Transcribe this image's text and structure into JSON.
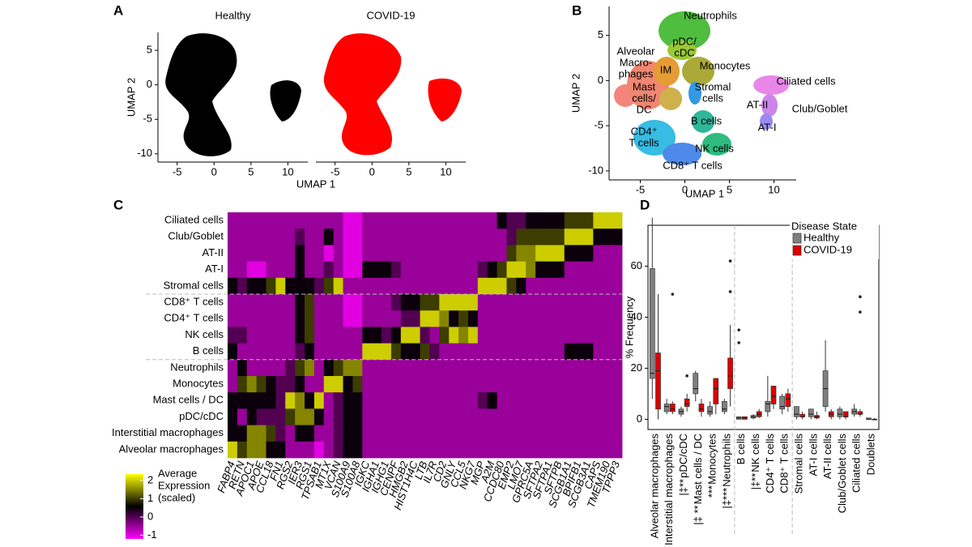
{
  "chart_data": [
    {
      "type": "umap",
      "panel_label": "A",
      "panels": [
        "Healthy",
        "COVID-19"
      ],
      "colors": [
        "#000000",
        "#ff0000"
      ],
      "xlabel": "UMAP 1",
      "ylabel": "UMAP 2",
      "xlim": [
        -7.6,
        12.7
      ],
      "ylim": [
        -11.2,
        7.6
      ],
      "xticks": [
        -5,
        0,
        5,
        10
      ],
      "yticks": [
        5,
        0,
        -5,
        -10
      ]
    },
    {
      "type": "umap",
      "panel_label": "B",
      "xlabel": "UMAP 1",
      "ylabel": "UMAP 2",
      "xlim": [
        -8.5,
        12.5
      ],
      "ylim": [
        -11,
        8.2
      ],
      "xticks": [
        -5,
        0,
        5,
        10
      ],
      "yticks": [
        5,
        0,
        -5,
        -10
      ],
      "cluster_labels": [
        [
          "Neutrophils"
        ],
        [
          "pDC/",
          "cDC"
        ],
        [
          "Alveolar",
          "Macro-",
          "phages"
        ],
        [
          "IM"
        ],
        [
          "Monocytes"
        ],
        [
          "Mast",
          "cells/",
          "DC"
        ],
        [
          "Stromal",
          "cells"
        ],
        [
          "CD4⁺",
          "T cells"
        ],
        [
          "B cells"
        ],
        [
          "NK cells"
        ],
        [
          "CD8⁺ T cells"
        ],
        [
          "Ciliated cells"
        ],
        [
          "AT-II"
        ],
        [
          "Club/Goblet"
        ],
        [
          "AT-I"
        ]
      ]
    },
    {
      "type": "heatmap",
      "panel_label": "C",
      "rows": [
        "Ciliated cells",
        "Club/Goblet",
        "AT-II",
        "AT-I",
        "Stromal cells",
        "CD8⁺ T cells",
        "CD4⁺ T cells",
        "NK cells",
        "B cells",
        "Neutrophils",
        "Monocytes",
        "Mast cells / DC",
        "pDC/cDC",
        "Interstitial macrophages",
        "Alveolar macrophages"
      ],
      "columns": [
        "FABP4",
        "RETN",
        "APOC1",
        "APOE",
        "CCL18",
        "FN1",
        "RGS2",
        "IER3",
        "RGS1",
        "TPSAB1",
        "MT1X",
        "VCAN",
        "S100A9",
        "S100A8",
        "IGKC",
        "IGHA1",
        "IGHG1",
        "CENPF",
        "HMGB2",
        "HIST1H4C",
        "LTB",
        "IL7R",
        "CD2",
        "GNLY",
        "CCL5",
        "NKG7",
        "MGP",
        "A2M",
        "CCDC80",
        "EMP2",
        "LMO7",
        "GPRC5A",
        "SFTPA2",
        "SFTPA1",
        "SFTPB",
        "SCGB1A1",
        "BPIFB1",
        "SCGB3A1",
        "CAPS",
        "TMEM190",
        "TPPP3"
      ],
      "values": [
        [
          -0.5,
          -0.5,
          -0.5,
          -0.5,
          -0.5,
          -0.5,
          -0.5,
          -0.5,
          -0.5,
          -0.5,
          -0.5,
          -0.5,
          -1,
          -1,
          -0.5,
          -0.5,
          -0.5,
          -0.5,
          -0.5,
          -0.5,
          -0.5,
          -0.5,
          -0.5,
          -0.5,
          -0.5,
          -0.5,
          -0.5,
          -0.5,
          0.5,
          0,
          0,
          0.5,
          0.5,
          0.5,
          0.5,
          1,
          1,
          1,
          2,
          2,
          2
        ],
        [
          -0.5,
          -0.5,
          -0.5,
          -0.5,
          -0.5,
          -0.5,
          -0.5,
          0,
          -0.5,
          -0.5,
          0.5,
          -0.5,
          -1,
          -1,
          -0.5,
          -0.5,
          -0.5,
          -0.5,
          -0.5,
          -0.5,
          -0.5,
          -0.5,
          -0.5,
          -0.5,
          -0.5,
          -0.5,
          -0.5,
          -0.5,
          -0.5,
          0,
          1,
          1,
          1,
          1,
          1,
          2,
          2,
          2,
          0.5,
          0.5,
          0.5
        ],
        [
          -0.5,
          -0.5,
          -0.5,
          -0.5,
          -0.5,
          -0.5,
          -0.5,
          0.5,
          -0.5,
          -0.5,
          -1,
          -0.5,
          -1,
          -1,
          -0.5,
          -0.5,
          -0.5,
          -0.5,
          -0.5,
          -0.5,
          -0.5,
          -0.5,
          -0.5,
          -0.5,
          -0.5,
          -0.5,
          -0.5,
          -0.5,
          -0.5,
          1,
          1.5,
          1.5,
          2,
          2,
          2,
          0.5,
          0.5,
          0.5,
          -0.5,
          -0.5,
          -0.5
        ],
        [
          -0.5,
          -0.5,
          -1,
          -1,
          -0.5,
          -0.5,
          -0.5,
          0.5,
          -0.5,
          -0.5,
          0,
          -0.5,
          -1,
          -1,
          0.5,
          0.5,
          0.5,
          0,
          -0.5,
          -0.5,
          -0.5,
          -0.5,
          -0.5,
          -0.5,
          -0.5,
          -0.5,
          0,
          0.5,
          1,
          2,
          2,
          1.5,
          0.5,
          0.5,
          0.5,
          -0.5,
          -0.5,
          -0.5,
          -0.5,
          -0.5,
          -0.5
        ],
        [
          0.5,
          0,
          0.5,
          0.5,
          1,
          2,
          0.5,
          0.5,
          0.5,
          0,
          1,
          2,
          -0.5,
          -0.5,
          -0.5,
          -0.5,
          -0.5,
          -0.5,
          -0.5,
          -0.5,
          -0.5,
          -0.5,
          -0.5,
          -0.5,
          -0.5,
          -0.5,
          2,
          2,
          2,
          1,
          0.5,
          -0.5,
          -0.5,
          -0.5,
          -0.5,
          -0.5,
          -0.5,
          -0.5,
          -0.5,
          -0.5,
          -0.5
        ],
        [
          -0.5,
          -0.5,
          -0.5,
          -0.5,
          -0.5,
          -0.5,
          -0.5,
          0.5,
          1,
          -0.5,
          -0.5,
          -0.5,
          -1,
          -1,
          -0.5,
          -0.5,
          -0.5,
          0,
          0.5,
          0.5,
          1,
          1,
          2,
          2,
          2,
          2,
          -0.5,
          -0.5,
          -0.5,
          -0.5,
          -0.5,
          -0.5,
          -0.5,
          -0.5,
          -0.5,
          -0.5,
          -0.5,
          -0.5,
          -0.5,
          -0.5,
          -0.5
        ],
        [
          -0.5,
          -0.5,
          -0.5,
          -0.5,
          -0.5,
          -0.5,
          -0.5,
          0.5,
          1,
          -0.5,
          -0.5,
          -0.5,
          -1,
          -1,
          -0.5,
          -0.5,
          -0.5,
          -0.5,
          0,
          0,
          2,
          2,
          1.5,
          0.5,
          1,
          0.5,
          -0.5,
          -0.5,
          -0.5,
          -0.5,
          -0.5,
          -0.5,
          -0.5,
          -0.5,
          -0.5,
          -0.5,
          -0.5,
          -0.5,
          -0.5,
          -0.5,
          -0.5
        ],
        [
          0,
          0,
          -0.5,
          -0.5,
          -0.5,
          -0.5,
          -0.5,
          0.5,
          1,
          -0.5,
          -0.5,
          -0.5,
          -0.5,
          -0.5,
          0.5,
          0.5,
          0,
          0.5,
          2,
          2,
          0,
          -0.5,
          1,
          2,
          1.5,
          2,
          -0.5,
          -0.5,
          -0.5,
          -0.5,
          -0.5,
          -0.5,
          -0.5,
          -0.5,
          -0.5,
          -0.5,
          -0.5,
          -0.5,
          -0.5,
          -0.5,
          -0.5
        ],
        [
          0.5,
          -0.5,
          -0.5,
          -0.5,
          -0.5,
          -0.5,
          -0.5,
          0,
          0.5,
          -0.5,
          -0.5,
          -0.5,
          -0.5,
          -0.5,
          2,
          2,
          2,
          1,
          0.5,
          0.5,
          1,
          0,
          -0.5,
          -0.5,
          -0.5,
          -0.5,
          -0.5,
          -0.5,
          -0.5,
          -0.5,
          -0.5,
          -0.5,
          -0.5,
          -0.5,
          -0.5,
          0.5,
          0.5,
          0.5,
          -0.5,
          -0.5,
          -0.5
        ],
        [
          -0.5,
          0.5,
          -0.5,
          -0.5,
          -0.5,
          -0.5,
          0,
          1,
          1.5,
          -0.5,
          0.5,
          1,
          1.5,
          1.5,
          -0.5,
          -0.5,
          -0.5,
          -0.5,
          -0.5,
          -0.5,
          -0.5,
          -0.5,
          -0.5,
          -0.5,
          -0.5,
          -0.5,
          -0.5,
          -0.5,
          -0.5,
          -0.5,
          -0.5,
          -0.5,
          -0.5,
          -0.5,
          -0.5,
          -0.5,
          -0.5,
          -0.5,
          -0.5,
          -0.5,
          -0.5
        ],
        [
          -0.5,
          1,
          1.5,
          1,
          0.5,
          0,
          0,
          0.5,
          -0.5,
          -0.5,
          2,
          2,
          0.5,
          1,
          -0.5,
          -0.5,
          -0.5,
          -0.5,
          -0.5,
          -0.5,
          -0.5,
          -0.5,
          -0.5,
          -0.5,
          -0.5,
          -0.5,
          -0.5,
          -0.5,
          -0.5,
          -0.5,
          -0.5,
          -0.5,
          -0.5,
          -0.5,
          -0.5,
          -0.5,
          -0.5,
          -0.5,
          -0.5,
          -0.5,
          -0.5
        ],
        [
          0.5,
          0.5,
          0.5,
          0.5,
          0.5,
          0,
          2,
          1.5,
          0.5,
          2,
          -0.5,
          0,
          0.5,
          0.5,
          -0.5,
          -0.5,
          -0.5,
          -0.5,
          -0.5,
          -0.5,
          -0.5,
          -0.5,
          -0.5,
          -0.5,
          -0.5,
          -0.5,
          0,
          0.5,
          -0.5,
          -0.5,
          -0.5,
          -0.5,
          -0.5,
          -0.5,
          -0.5,
          -0.5,
          -0.5,
          -0.5,
          -0.5,
          -0.5,
          -0.5
        ],
        [
          0.5,
          -0.5,
          0.5,
          0,
          0,
          0,
          1,
          1.5,
          1.5,
          0.5,
          -0.5,
          0,
          0.5,
          0.5,
          -0.5,
          -0.5,
          -0.5,
          -0.5,
          -0.5,
          -0.5,
          -0.5,
          -0.5,
          -0.5,
          -0.5,
          -0.5,
          -0.5,
          -0.5,
          -0.5,
          -0.5,
          -0.5,
          -0.5,
          -0.5,
          -0.5,
          -0.5,
          -0.5,
          -0.5,
          -0.5,
          -0.5,
          -0.5,
          -0.5,
          -0.5
        ],
        [
          0.5,
          0.5,
          1.5,
          1.5,
          1,
          0,
          -0.5,
          0.5,
          0.5,
          -0.5,
          -0.5,
          0,
          0.5,
          0.5,
          -0.5,
          -0.5,
          -0.5,
          -0.5,
          -0.5,
          -0.5,
          -0.5,
          -0.5,
          -0.5,
          -0.5,
          -0.5,
          -0.5,
          -0.5,
          -0.5,
          -0.5,
          -0.5,
          -0.5,
          -0.5,
          -0.5,
          -0.5,
          -0.5,
          -0.5,
          -0.5,
          -0.5,
          -0.5,
          -0.5,
          -0.5
        ],
        [
          2,
          1,
          1.5,
          1.5,
          0.5,
          0.5,
          -0.5,
          -0.5,
          -0.5,
          -1,
          -0.5,
          0,
          0.5,
          0.5,
          -0.5,
          -0.5,
          -0.5,
          -0.5,
          -0.5,
          -0.5,
          -0.5,
          -0.5,
          -0.5,
          -0.5,
          -0.5,
          -0.5,
          -0.5,
          -0.5,
          -0.5,
          -0.5,
          -0.5,
          -0.5,
          -0.5,
          -0.5,
          -0.5,
          -0.5,
          -0.5,
          -0.5,
          -0.5,
          -0.5,
          -0.5
        ]
      ],
      "colorbar_title": [
        "Average",
        "Expression",
        "(scaled)"
      ],
      "colorbar_lim": [
        -1.2,
        2.35
      ],
      "colorbar_ticks": [
        2,
        1,
        0,
        -1
      ],
      "colorbar_colors": [
        "#ff00ff",
        "#000000",
        "#ffff00"
      ]
    },
    {
      "type": "box",
      "panel_label": "D",
      "ylabel": "% Frequency",
      "ylim": [
        -4,
        76
      ],
      "yticks": [
        0,
        20,
        40,
        60
      ],
      "categories": [
        "Alveolar macrophages",
        "Interstitial macrophages",
        "pDC/cDC",
        "Mast cells / DC",
        "Monocytes",
        "Neutrophils",
        "B cells",
        "NK cells",
        "CD4⁺ T cells",
        "CD8⁺ T cells",
        "Stromal cells",
        "AT-I cells",
        "AT-II cells",
        "Club/Goblet cells",
        "Ciliated cells",
        "Doublets"
      ],
      "annotations": [
        null,
        null,
        "|‡**",
        "|‡ **",
        "***",
        "|‡***",
        null,
        "|‡**",
        null,
        null,
        null,
        null,
        null,
        null,
        null,
        null
      ],
      "legend_title": "Disease State",
      "legend_position": "top-right",
      "series": [
        {
          "name": "Healthy",
          "color": "#808080",
          "low": [
            8,
            2,
            1,
            7,
            1,
            2,
            0,
            0,
            1,
            2,
            0,
            0,
            3,
            0,
            1,
            0
          ],
          "q1": [
            16,
            3,
            2,
            10,
            2,
            3,
            0,
            0.5,
            3,
            4,
            1,
            1,
            5,
            1,
            2,
            0
          ],
          "median": [
            18,
            5,
            3,
            12,
            3,
            4,
            0.5,
            1,
            6,
            5,
            2,
            2,
            12,
            2,
            3,
            0
          ],
          "q3": [
            59,
            6,
            4,
            18,
            5,
            7,
            1,
            1.5,
            7,
            9,
            5,
            4,
            19,
            4,
            4,
            0.5
          ],
          "high": [
            79,
            8,
            5,
            19,
            7,
            8,
            1,
            2,
            17,
            10,
            5,
            4,
            31,
            5,
            6,
            0.5
          ],
          "outliers": [
            [],
            [],
            [],
            [],
            [],
            [],
            [
              35,
              30
            ],
            [],
            [],
            [],
            [],
            [],
            [],
            [],
            [],
            []
          ]
        },
        {
          "name": "COVID-19",
          "color": "#e00000",
          "low": [
            0,
            2,
            3,
            1,
            2,
            5,
            0,
            0.5,
            4,
            3,
            0,
            0,
            0,
            0,
            1,
            0
          ],
          "q1": [
            4,
            3,
            5,
            3,
            6,
            12,
            0,
            1,
            6,
            5,
            1,
            0.5,
            1,
            1,
            2,
            0
          ],
          "median": [
            19,
            4,
            6,
            4,
            12,
            17,
            0.5,
            2,
            9,
            8,
            1,
            1,
            2,
            1,
            2,
            0
          ],
          "q3": [
            26,
            6,
            8,
            6,
            16,
            24,
            1,
            3,
            13,
            10,
            2,
            1.5,
            3,
            3,
            3,
            0
          ],
          "high": [
            49,
            7,
            10,
            8,
            16,
            37,
            1,
            4,
            13,
            12,
            3,
            3,
            4,
            3,
            4,
            0.5
          ],
          "outliers": [
            [],
            [
              49
            ],
            [
              17
            ],
            [],
            [],
            [
              62,
              50
            ],
            [],
            [],
            [],
            [],
            [],
            [],
            [],
            [],
            [
              48,
              42
            ],
            []
          ]
        }
      ]
    }
  ]
}
